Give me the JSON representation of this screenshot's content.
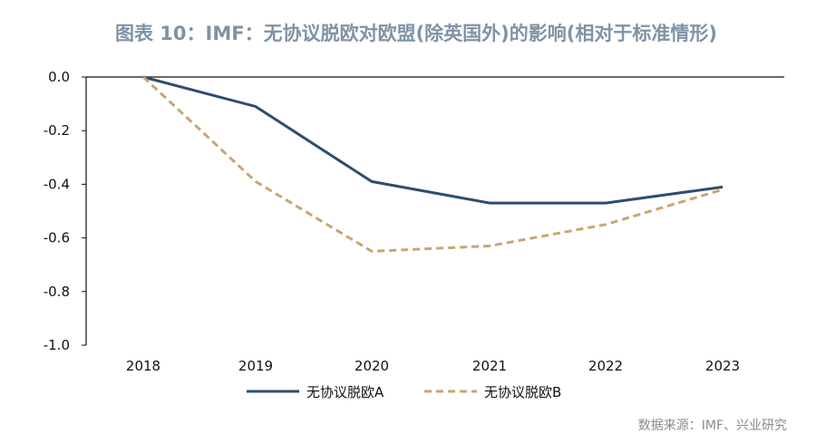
{
  "chart_data": {
    "type": "line",
    "title": "图表 10：IMF：无协议脱欧对欧盟(除英国外)的影响(相对于标准情形)",
    "source": "数据来源：IMF、兴业研究",
    "x": [
      "2018",
      "2019",
      "2020",
      "2021",
      "2022",
      "2023"
    ],
    "y_ticks": [
      "0.0",
      "-0.2",
      "-0.4",
      "-0.6",
      "-0.8",
      "-1.0"
    ],
    "ylim": [
      -1.0,
      0.0
    ],
    "grid": false,
    "legend_position": "bottom",
    "series": [
      {
        "name": "无协议脱欧A",
        "color": "#2e4d6e",
        "dash": "solid",
        "values": [
          0.0,
          -0.11,
          -0.39,
          -0.47,
          -0.47,
          -0.41
        ]
      },
      {
        "name": "无协议脱欧B",
        "color": "#c9a572",
        "dash": "dashed",
        "values": [
          0.0,
          -0.39,
          -0.65,
          -0.63,
          -0.55,
          -0.42
        ]
      }
    ]
  }
}
